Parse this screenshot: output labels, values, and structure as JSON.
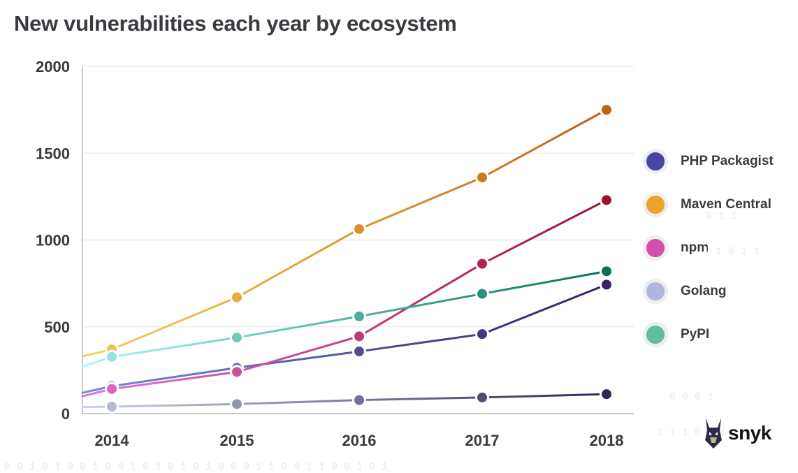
{
  "title": "New vulnerabilities each year by ecosystem",
  "brand": {
    "name": "snyk",
    "logo_icon": "doberman-logo-icon"
  },
  "decoration": {
    "binary_rows": [
      "0 1 1",
      "1 1 0 1 1",
      "0 0 0 1",
      "1 1 1 0 0 1",
      "0 0 1 0 1 0 0 1 0 0 1 0 1 0 1 0 1 0 0 0 1 1 0 0 1 1 0 0 1 0 1"
    ]
  },
  "chart_data": {
    "type": "line",
    "title": "New vulnerabilities each year by ecosystem",
    "xlabel": "",
    "ylabel": "",
    "categories": [
      "2014",
      "2015",
      "2016",
      "2017",
      "2018"
    ],
    "yticks": [
      0,
      500,
      1000,
      1500,
      2000
    ],
    "ylim": [
      0,
      2000
    ],
    "grid": true,
    "legend_position": "right",
    "series": [
      {
        "name": "PHP Packagist",
        "values": [
          158,
          264,
          358,
          458,
          743
        ],
        "color_start": "#6f8fd6",
        "color_end": "#3b1d6b",
        "legend_color": "#4b44a8",
        "lead_in": 120
      },
      {
        "name": "Maven Central",
        "values": [
          370,
          670,
          1063,
          1360,
          1750
        ],
        "color_start": "#f7d35f",
        "color_end": "#c2610e",
        "legend_color": "#f0a32b",
        "lead_in": 330
      },
      {
        "name": "npm",
        "values": [
          142,
          240,
          445,
          863,
          1230
        ],
        "color_start": "#e872e0",
        "color_end": "#a00f2e",
        "legend_color": "#d44daf",
        "lead_in": 100
      },
      {
        "name": "Golang",
        "values": [
          40,
          55,
          78,
          93,
          112
        ],
        "color_start": "#cbd4ea",
        "color_end": "#2b2a52",
        "legend_color": "#b0b7dc",
        "lead_in": 38
      },
      {
        "name": "PyPI",
        "values": [
          327,
          438,
          560,
          690,
          820
        ],
        "color_start": "#a9fbf4",
        "color_end": "#06735a",
        "legend_color": "#5fbf9c",
        "lead_in": 270
      }
    ]
  }
}
